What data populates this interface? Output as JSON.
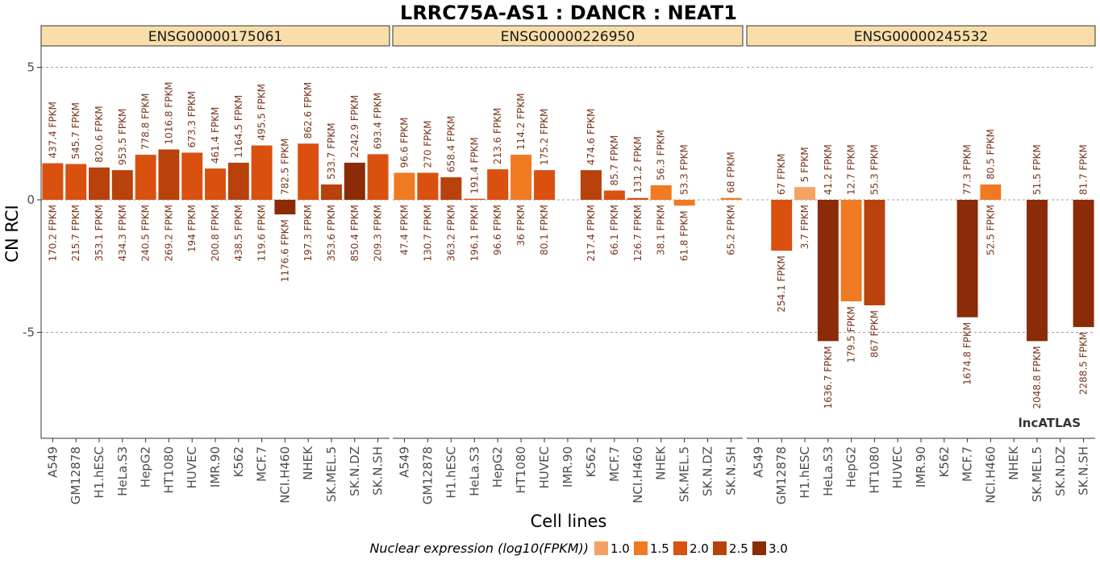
{
  "chart_data": {
    "type": "bar",
    "title": "LRRC75A-AS1 : DANCR : NEAT1",
    "xlabel": "Cell lines",
    "ylabel": "CN RCI",
    "ylim": [
      -9,
      5.9
    ],
    "yticks": [
      5,
      0,
      -5
    ],
    "ytick_labels": [
      "5",
      "0",
      "-5"
    ],
    "grid": true,
    "legend_position": "bottom",
    "watermark": "lncATLAS",
    "categories": [
      "A549",
      "GM12878",
      "H1.hESC",
      "HeLa.S3",
      "HepG2",
      "HT1080",
      "HUVEC",
      "IMR.90",
      "K562",
      "MCF.7",
      "NCI.H460",
      "NHEK",
      "SK.MEL.5",
      "SK.N.DZ",
      "SK.N.SH"
    ],
    "legend": {
      "title": "Nuclear expression (log10(FPKM))",
      "items": [
        {
          "label": "1.0",
          "color": "#f6a164"
        },
        {
          "label": "1.5",
          "color": "#f07a22"
        },
        {
          "label": "2.0",
          "color": "#d9500f"
        },
        {
          "label": "2.5",
          "color": "#b8410c"
        },
        {
          "label": "3.0",
          "color": "#8b2b07"
        }
      ]
    },
    "panels": [
      {
        "name": "ENSG00000175061",
        "values": [
          1.38,
          1.35,
          1.22,
          1.12,
          1.7,
          1.9,
          1.78,
          1.18,
          1.4,
          2.05,
          -0.55,
          2.12,
          0.58,
          1.4,
          1.72
        ],
        "top_labels": [
          "437.4 FPKM",
          "545.7 FPKM",
          "820.6 FPKM",
          "953.5 FPKM",
          "778.8 FPKM",
          "1016.8 FPKM",
          "673.3 FPKM",
          "461.4 FPKM",
          "1164.5 FPKM",
          "495.5 FPKM",
          "782.5 FPKM",
          "862.6 FPKM",
          "533.7 FPKM",
          "2242.9 FPKM",
          "693.4 FPKM"
        ],
        "bottom_labels": [
          "170.2 FPKM",
          "215.7 FPKM",
          "353.1 FPKM",
          "434.3 FPKM",
          "240.5 FPKM",
          "269.2 FPKM",
          "194 FPKM",
          "200.8 FPKM",
          "438.5 FPKM",
          "119.6 FPKM",
          "1176.6 FPKM",
          "197.3 FPKM",
          "353.6 FPKM",
          "850.4 FPKM",
          "209.3 FPKM"
        ],
        "colors": [
          "#d9500f",
          "#d9500f",
          "#b8410c",
          "#b8410c",
          "#d9500f",
          "#b8410c",
          "#d9500f",
          "#d9500f",
          "#b8410c",
          "#d9500f",
          "#8b2b07",
          "#d9500f",
          "#b8410c",
          "#8b2b07",
          "#d9500f"
        ]
      },
      {
        "name": "ENSG00000226950",
        "values": [
          1.02,
          1.02,
          0.85,
          0.04,
          1.15,
          1.7,
          1.12,
          null,
          1.12,
          0.35,
          0.07,
          0.55,
          -0.22,
          null,
          0.07
        ],
        "top_labels": [
          "96.6 FPKM",
          "270 FPKM",
          "658.4 FPKM",
          "191.4 FPKM",
          "213.6 FPKM",
          "114.2 FPKM",
          "175.2 FPKM",
          "",
          "474.6 FPKM",
          "85.7 FPKM",
          "131.2 FPKM",
          "56.3 FPKM",
          "53.3 FPKM",
          "",
          "68 FPKM"
        ],
        "bottom_labels": [
          "47.4 FPKM",
          "130.7 FPKM",
          "363.2 FPKM",
          "196.1 FPKM",
          "96.6 FPKM",
          "36 FPKM",
          "80.1 FPKM",
          "",
          "217.4 FPKM",
          "66.1 FPKM",
          "126.7 FPKM",
          "38.1 FPKM",
          "61.8 FPKM",
          "",
          "65.2 FPKM"
        ],
        "colors": [
          "#f07a22",
          "#d9500f",
          "#b8410c",
          "#d9500f",
          "#d9500f",
          "#f07a22",
          "#d9500f",
          "",
          "#b8410c",
          "#d9500f",
          "#d9500f",
          "#f07a22",
          "#f07a22",
          "",
          "#f07a22"
        ]
      },
      {
        "name": "ENSG00000245532",
        "values": [
          null,
          -1.92,
          0.48,
          -5.33,
          -3.83,
          -3.98,
          null,
          null,
          null,
          -4.43,
          0.58,
          null,
          -5.33,
          null,
          -4.8
        ],
        "top_labels": [
          "",
          "67 FPKM",
          "5 FPKM",
          "41.2 FPKM",
          "12.7 FPKM",
          "55.3 FPKM",
          "",
          "",
          "",
          "77.3 FPKM",
          "80.5 FPKM",
          "",
          "51.5 FPKM",
          "",
          "81.7 FPKM"
        ],
        "bottom_labels": [
          "",
          "254.1 FPKM",
          "3.7 FPKM",
          "1636.7 FPKM",
          "179.5 FPKM",
          "867 FPKM",
          "",
          "",
          "",
          "1674.8 FPKM",
          "52.5 FPKM",
          "",
          "2048.8 FPKM",
          "",
          "2288.5 FPKM"
        ],
        "colors": [
          "",
          "#d9500f",
          "#f6a164",
          "#8b2b07",
          "#f07a22",
          "#b8410c",
          "",
          "",
          "",
          "#8b2b07",
          "#f07a22",
          "",
          "#8b2b07",
          "",
          "#8b2b07"
        ]
      }
    ]
  }
}
